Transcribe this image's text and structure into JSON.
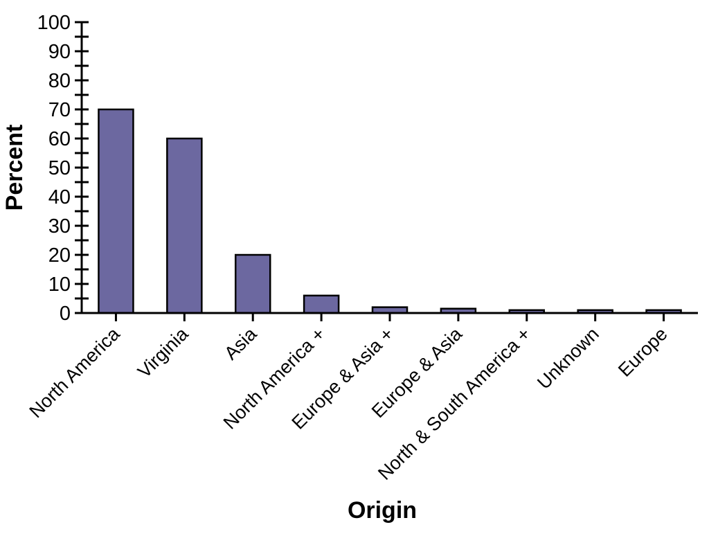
{
  "chart_data": {
    "type": "bar",
    "title": "",
    "xlabel": "Origin",
    "ylabel": "Percent",
    "categories": [
      "North America",
      "Virginia",
      "Asia",
      "North America +",
      "Europe & Asia +",
      "Europe & Asia",
      "North & South America +",
      "Unknown",
      "Europe"
    ],
    "values": [
      70,
      60,
      20,
      6,
      2,
      1.5,
      1,
      1,
      1
    ],
    "ylim": [
      0,
      100
    ],
    "y_major_tick": 10,
    "y_minor_tick": 5,
    "y_tick_labels": [
      "0",
      "10",
      "20",
      "30",
      "40",
      "50",
      "60",
      "70",
      "80",
      "90",
      "100"
    ],
    "grid": false,
    "legend": false,
    "x_label_rotation_deg": 45,
    "colors": {
      "bar_fill": "#6C68A0",
      "bar_stroke": "#000000",
      "axis": "#000000",
      "text": "#000000",
      "background": "#ffffff"
    }
  }
}
